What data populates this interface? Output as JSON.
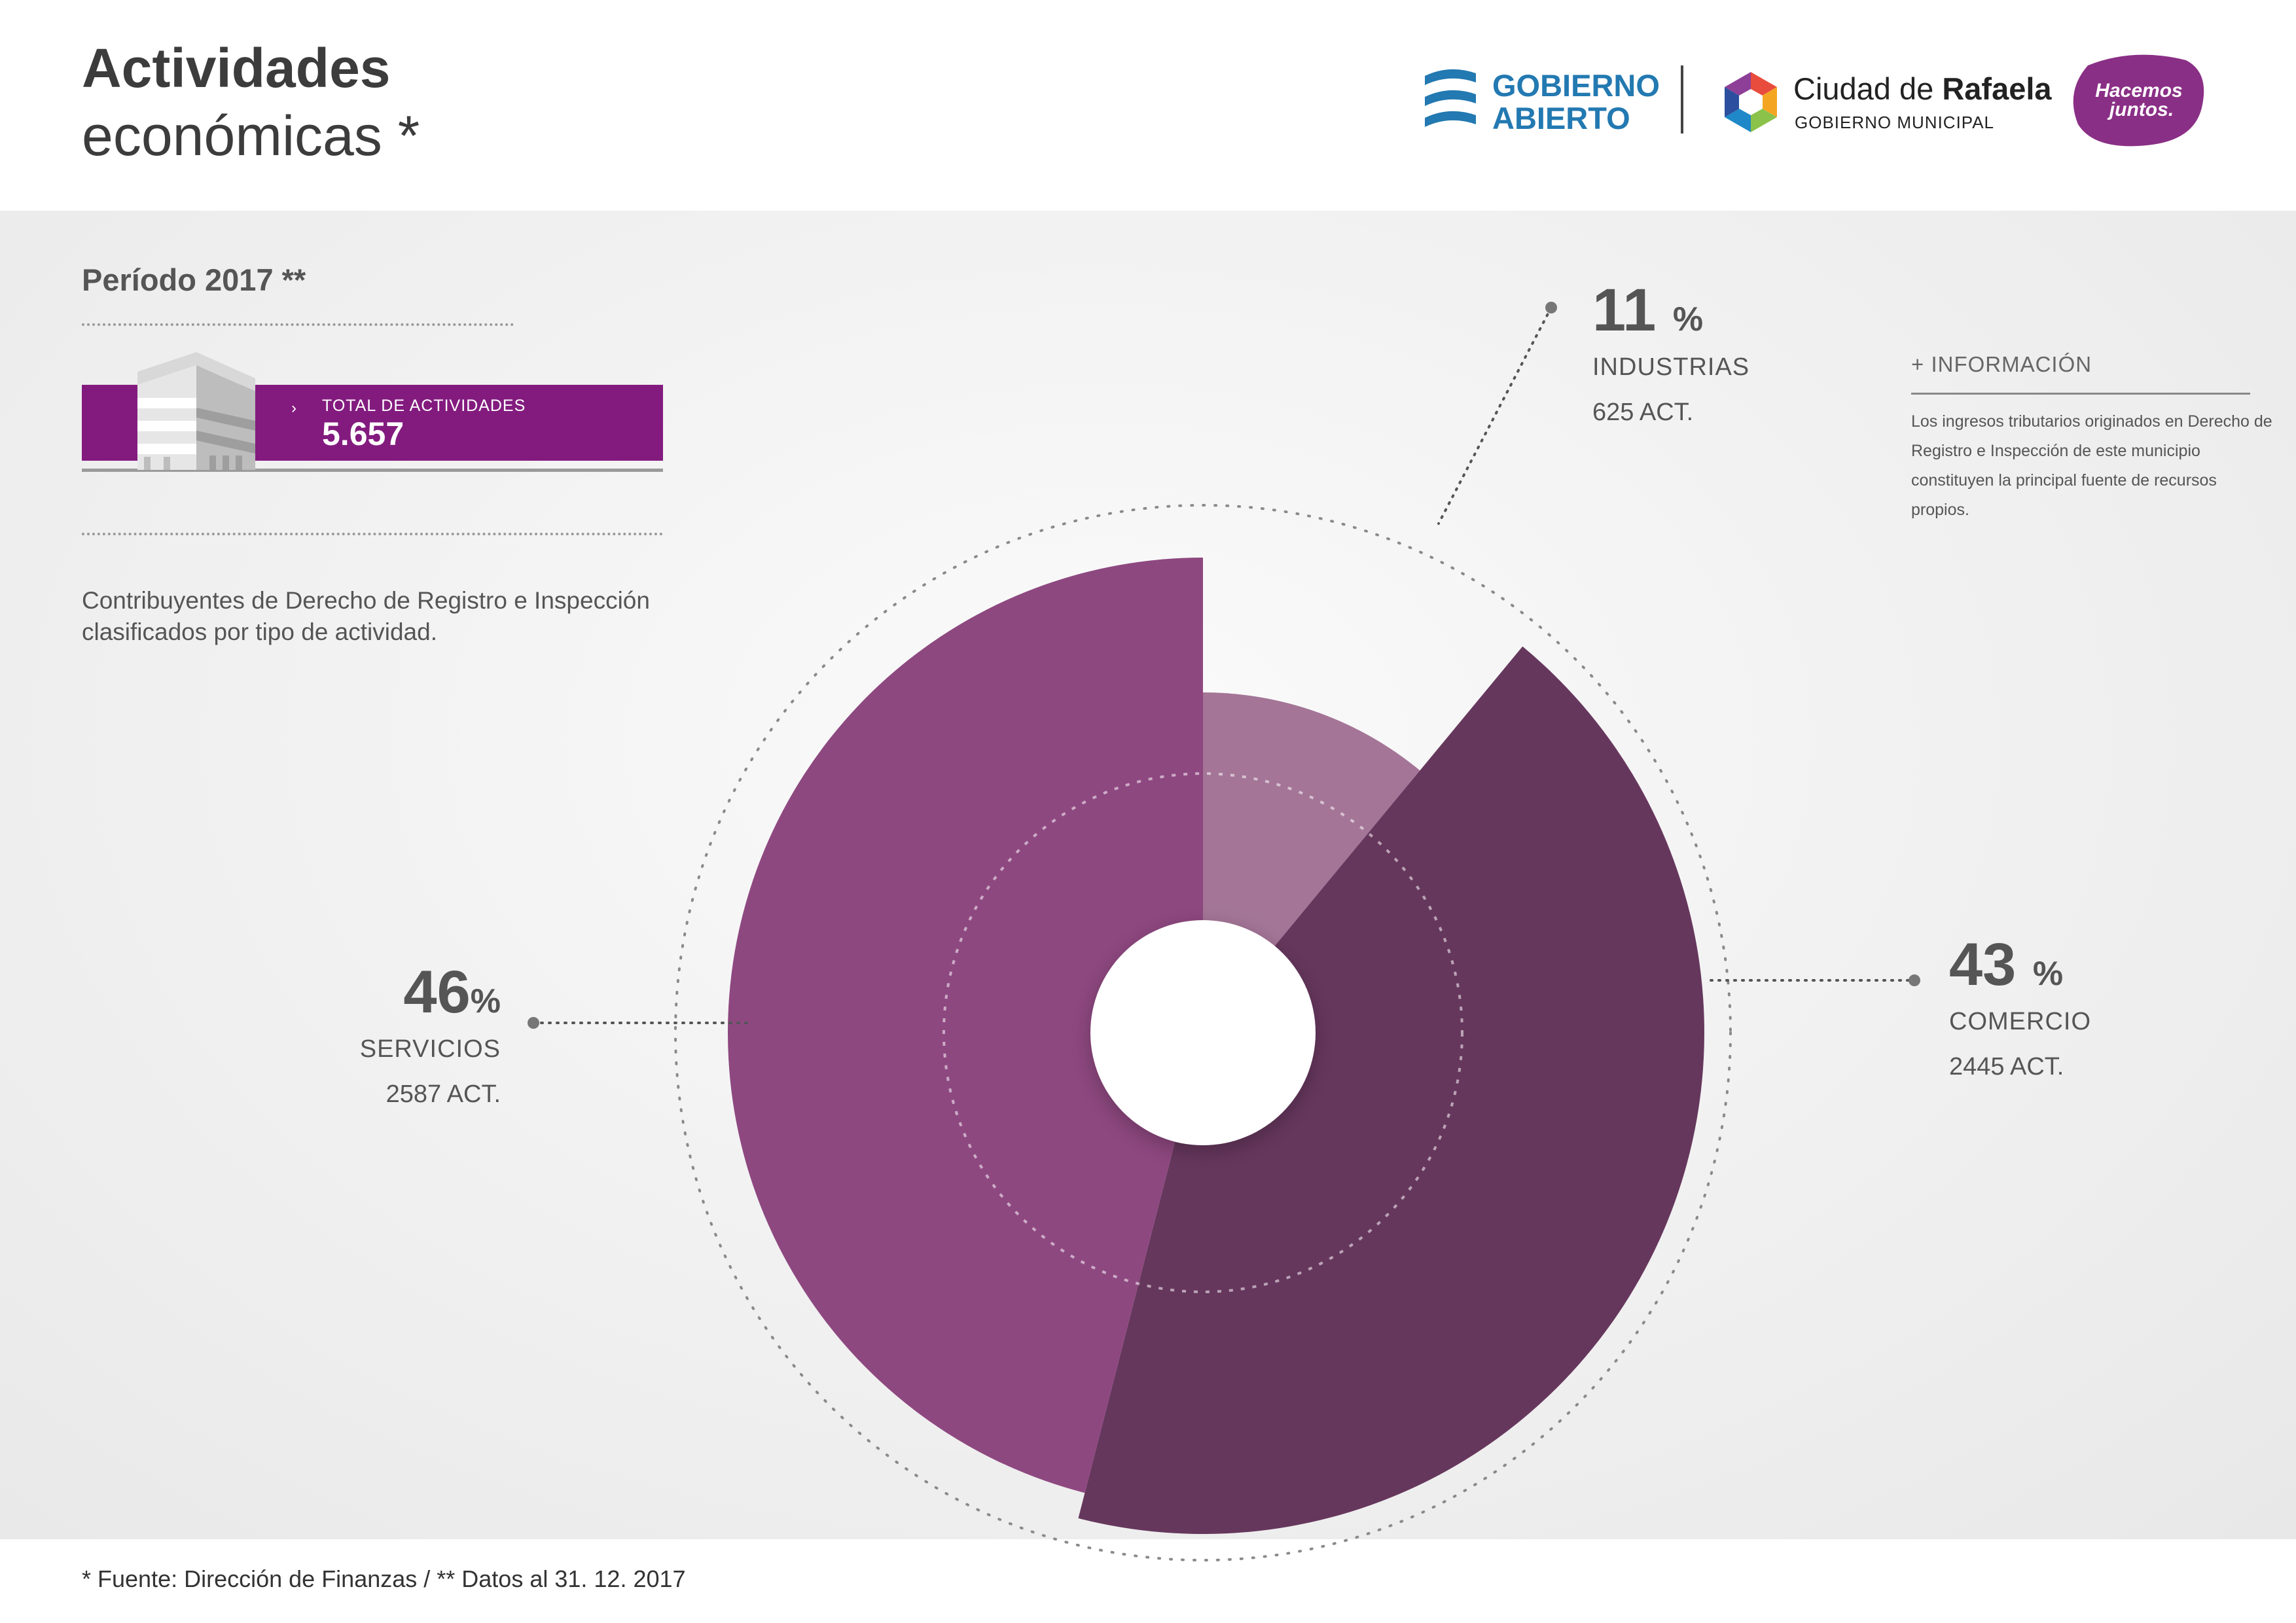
{
  "header": {
    "title_line1": "Actividades",
    "title_line2": "económicas *",
    "logos": {
      "gobierno_abierto": [
        "GOBIERNO",
        "ABIERTO"
      ],
      "ciudad": {
        "prefix": "Ciudad de",
        "name": "Rafaela",
        "subtitle": "GOBIERNO MUNICIPAL"
      },
      "hacemos": [
        "Hacemos",
        "juntos."
      ]
    }
  },
  "left": {
    "period": "Período 2017 **",
    "total_label": "TOTAL DE ACTIVIDADES",
    "total_value": "5.657",
    "arrow": "›",
    "description": "Contribuyentes de Derecho de Registro e Inspección clasificados por tipo de actividad."
  },
  "info": {
    "heading": "+ INFORMACIÓN",
    "text": "Los ingresos tributarios originados en Derecho de Registro e Inspección de este municipio constituyen la principal fuente de recursos propios."
  },
  "chart_data": {
    "type": "pie",
    "slices": [
      {
        "label": "INDUSTRIAS",
        "percent": 11,
        "count_text": "625 ACT.",
        "count": 625,
        "color": "#a47597"
      },
      {
        "label": "COMERCIO",
        "percent": 43,
        "count_text": "2445 ACT.",
        "count": 2445,
        "color": "#66375d"
      },
      {
        "label": "SERVICIOS",
        "percent": 46,
        "count_text": "2587 ACT.",
        "count": 2587,
        "color": "#8e4880"
      }
    ],
    "pct_symbol": "%",
    "total": 5657
  },
  "footer": {
    "source": "* Fuente: Dirección de Finanzas / ** Datos al 31. 12. 2017"
  },
  "colors": {
    "accent": "#831b7f",
    "gobierno_abierto_blue": "#2379b1",
    "hacemos_purple": "#8a2f86"
  }
}
